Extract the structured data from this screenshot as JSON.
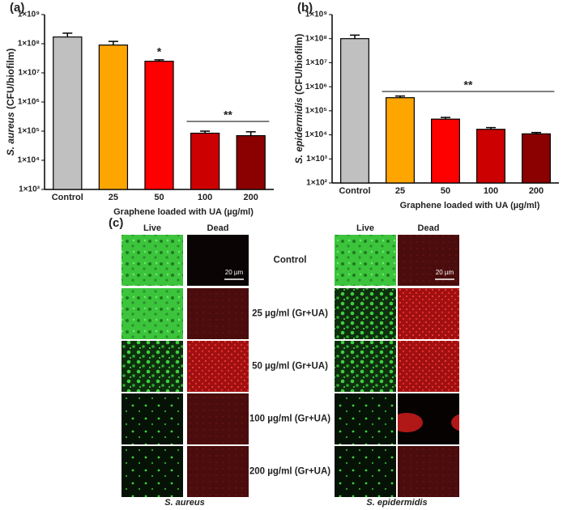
{
  "chart_data": [
    {
      "type": "bar",
      "panel": "(a)",
      "log_scale": true,
      "ylabel": [
        "S. aureus",
        " (CFU/biofilm)"
      ],
      "xlabel": "Graphene loaded with UA (µg/ml)",
      "categories": [
        "Control",
        "25",
        "50",
        "100",
        "200"
      ],
      "values": [
        170000000,
        90000000,
        25000000,
        85000,
        70000
      ],
      "errors": [
        60000000,
        30000000,
        3000000,
        15000,
        25000
      ],
      "colors": [
        "#c0c0c0",
        "#ffa500",
        "#ff0000",
        "#cc0000",
        "#8b0000"
      ],
      "ylim": [
        1000,
        1000000000
      ],
      "yticks": [
        {
          "value": 1000,
          "label": "1×10³"
        },
        {
          "value": 10000,
          "label": "1×10⁴"
        },
        {
          "value": 100000,
          "label": "1×10⁵"
        },
        {
          "value": 1000000,
          "label": "1×10⁶"
        },
        {
          "value": 10000000,
          "label": "1×10⁷"
        },
        {
          "value": 100000000,
          "label": "1×10⁸"
        },
        {
          "value": 1000000000,
          "label": "1×10⁹"
        }
      ],
      "annotations": [
        {
          "text": "*"
        },
        {
          "text": "**"
        }
      ]
    },
    {
      "type": "bar",
      "panel": "(b)",
      "log_scale": true,
      "ylabel": [
        "S. epidermidis",
        " (CFU/biofilm)"
      ],
      "xlabel": "Graphene loaded with UA (µg/ml)",
      "categories": [
        "Control",
        "25",
        "50",
        "100",
        "200"
      ],
      "values": [
        100000000,
        350000,
        45000,
        17000,
        11000
      ],
      "errors": [
        40000000,
        60000,
        8000,
        3000,
        1500
      ],
      "colors": [
        "#c0c0c0",
        "#ffa500",
        "#ff0000",
        "#cc0000",
        "#8b0000"
      ],
      "ylim": [
        100,
        1000000000
      ],
      "yticks": [
        {
          "value": 100,
          "label": "1×10²"
        },
        {
          "value": 1000,
          "label": "1×10³"
        },
        {
          "value": 10000,
          "label": "1×10⁴"
        },
        {
          "value": 100000,
          "label": "1×10⁵"
        },
        {
          "value": 1000000,
          "label": "1×10⁶"
        },
        {
          "value": 10000000,
          "label": "1×10⁷"
        },
        {
          "value": 100000000,
          "label": "1×10⁸"
        },
        {
          "value": 1000000000,
          "label": "1×10⁹"
        }
      ],
      "annotations": [
        {
          "text": "**"
        }
      ]
    }
  ],
  "microscopy": {
    "panel": "(c)",
    "columns": [
      "Live",
      "Dead"
    ],
    "rows": [
      "Control",
      "25 µg/ml (Gr+UA)",
      "50 µg/ml (Gr+UA)",
      "100 µg/ml (Gr+UA)",
      "200 µg/ml (Gr+UA)"
    ],
    "scale_bar": "20 µm",
    "organisms": [
      "S. aureus",
      "S. epidermidis"
    ]
  }
}
